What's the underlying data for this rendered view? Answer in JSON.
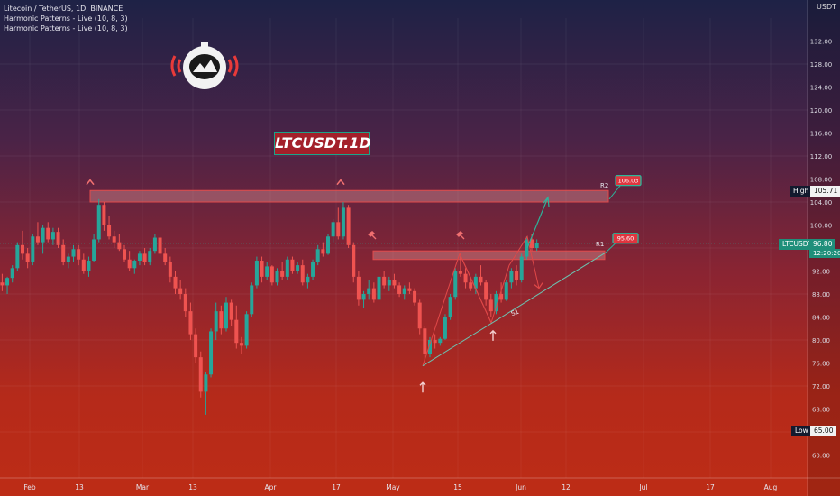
{
  "legend": {
    "line1": "Litecoin / TetherUS, 1D, BINANCE",
    "line2": "Harmonic Patterns - Live (10, 8, 3)",
    "line3": "Harmonic Patterns - Live (10, 8, 3)"
  },
  "currency": "USDT",
  "symbol_title": "LTCUSDT.1D",
  "price_tags": {
    "high_label": "High",
    "high_value": "105.71",
    "low_label": "Low",
    "low_value": "65.00",
    "symbol": "LTCUSDT",
    "last_price": "96.80",
    "countdown": "12:20:20"
  },
  "annotations": {
    "r2": "R2",
    "r1": "R1",
    "s1": "S1",
    "r2_callout": "106.03",
    "r1_callout": "95.60"
  },
  "colors": {
    "up": "#26a69a",
    "down": "#ef5350",
    "zone_fill": "#e8a0a0",
    "callout_fill": "#e0353f",
    "callout_border": "#2bb89a"
  },
  "icons": [
    "astronaut-logo-icon",
    "resistance-caret-icon",
    "support-arrow-icon",
    "hammer-pattern-icon"
  ],
  "chart_data": {
    "type": "candlestick",
    "title": "LTCUSDT.1D",
    "ylim": [
      56,
      136
    ],
    "y_ticks": [
      60,
      64,
      68,
      72,
      76,
      80,
      84,
      88,
      92,
      96,
      100,
      104,
      108,
      112,
      116,
      120,
      124,
      128,
      132
    ],
    "x_labels": [
      "Feb",
      "13",
      "Mar",
      "13",
      "Apr",
      "17",
      "May",
      "15",
      "Jun",
      "12",
      "Jul",
      "17",
      "Aug"
    ],
    "candles_ohlc": [
      [
        90.0,
        91.5,
        88.5,
        89.5
      ],
      [
        89.5,
        91.0,
        88.0,
        90.8
      ],
      [
        90.8,
        93.0,
        90.0,
        92.5
      ],
      [
        92.5,
        97.0,
        92.0,
        96.5
      ],
      [
        96.5,
        99.0,
        94.0,
        95.0
      ],
      [
        95.0,
        96.0,
        92.5,
        93.5
      ],
      [
        93.5,
        98.5,
        93.0,
        98.0
      ],
      [
        98.0,
        100.5,
        96.5,
        97.0
      ],
      [
        97.0,
        100.0,
        95.0,
        99.5
      ],
      [
        99.5,
        100.5,
        97.0,
        97.5
      ],
      [
        97.5,
        99.5,
        96.5,
        98.8
      ],
      [
        98.8,
        99.5,
        96.0,
        96.5
      ],
      [
        96.5,
        97.5,
        93.0,
        93.5
      ],
      [
        93.5,
        95.0,
        92.5,
        94.5
      ],
      [
        94.5,
        96.5,
        93.5,
        95.8
      ],
      [
        95.8,
        96.5,
        93.0,
        94.0
      ],
      [
        94.0,
        95.0,
        91.5,
        92.0
      ],
      [
        92.0,
        94.5,
        91.0,
        93.8
      ],
      [
        93.8,
        98.5,
        93.5,
        97.5
      ],
      [
        97.5,
        104.5,
        97.0,
        103.5
      ],
      [
        103.5,
        104.0,
        99.0,
        100.0
      ],
      [
        100.0,
        101.5,
        97.5,
        98.0
      ],
      [
        98.0,
        99.0,
        96.0,
        97.0
      ],
      [
        97.0,
        98.5,
        95.5,
        95.8
      ],
      [
        95.8,
        96.5,
        93.5,
        94.0
      ],
      [
        94.0,
        95.5,
        92.0,
        92.5
      ],
      [
        92.5,
        94.0,
        91.5,
        93.8
      ],
      [
        93.8,
        95.5,
        93.0,
        95.0
      ],
      [
        95.0,
        96.0,
        93.0,
        93.5
      ],
      [
        93.5,
        96.0,
        93.0,
        95.5
      ],
      [
        95.5,
        98.5,
        95.0,
        97.8
      ],
      [
        97.8,
        98.0,
        94.5,
        95.0
      ],
      [
        95.0,
        96.0,
        93.0,
        93.5
      ],
      [
        93.5,
        94.5,
        90.0,
        91.0
      ],
      [
        91.0,
        92.0,
        88.0,
        89.0
      ],
      [
        89.0,
        90.5,
        87.0,
        88.0
      ],
      [
        88.0,
        89.0,
        84.0,
        85.0
      ],
      [
        85.0,
        86.5,
        80.0,
        81.0
      ],
      [
        81.0,
        82.0,
        76.0,
        77.0
      ],
      [
        77.0,
        78.0,
        70.0,
        71.0
      ],
      [
        71.0,
        74.5,
        67.0,
        74.0
      ],
      [
        74.0,
        82.0,
        73.5,
        81.5
      ],
      [
        81.5,
        86.5,
        80.0,
        85.0
      ],
      [
        85.0,
        86.0,
        81.0,
        82.0
      ],
      [
        82.0,
        87.5,
        81.5,
        86.5
      ],
      [
        86.5,
        87.0,
        82.5,
        83.5
      ],
      [
        83.5,
        86.0,
        78.5,
        79.5
      ],
      [
        79.5,
        80.5,
        77.5,
        79.0
      ],
      [
        79.0,
        85.0,
        78.5,
        84.5
      ],
      [
        84.5,
        90.0,
        84.0,
        89.5
      ],
      [
        89.5,
        94.5,
        89.0,
        93.8
      ],
      [
        93.8,
        94.5,
        90.0,
        91.0
      ],
      [
        91.0,
        93.5,
        90.5,
        92.8
      ],
      [
        92.8,
        93.0,
        89.5,
        90.0
      ],
      [
        90.0,
        92.5,
        89.5,
        92.0
      ],
      [
        92.0,
        93.5,
        90.5,
        91.0
      ],
      [
        91.0,
        94.5,
        90.5,
        94.0
      ],
      [
        94.0,
        94.5,
        91.5,
        92.0
      ],
      [
        92.0,
        93.5,
        91.5,
        93.0
      ],
      [
        93.0,
        94.0,
        89.5,
        90.0
      ],
      [
        90.0,
        91.5,
        89.0,
        91.0
      ],
      [
        91.0,
        94.0,
        90.5,
        93.5
      ],
      [
        93.5,
        96.5,
        93.0,
        95.8
      ],
      [
        95.8,
        97.0,
        94.5,
        95.0
      ],
      [
        95.0,
        98.5,
        94.8,
        98.0
      ],
      [
        98.0,
        101.0,
        97.0,
        100.5
      ],
      [
        100.5,
        103.0,
        97.5,
        98.0
      ],
      [
        98.0,
        104.0,
        97.5,
        103.0
      ],
      [
        103.0,
        103.5,
        96.0,
        96.5
      ],
      [
        96.5,
        97.0,
        90.0,
        91.0
      ],
      [
        91.0,
        92.0,
        86.0,
        87.0
      ],
      [
        87.0,
        88.5,
        85.5,
        88.0
      ],
      [
        88.0,
        90.5,
        87.0,
        89.0
      ],
      [
        89.0,
        90.0,
        86.5,
        87.0
      ],
      [
        87.0,
        91.5,
        86.5,
        91.0
      ],
      [
        91.0,
        92.0,
        89.0,
        89.5
      ],
      [
        89.5,
        91.0,
        88.5,
        90.5
      ],
      [
        90.5,
        91.5,
        89.0,
        89.5
      ],
      [
        89.5,
        90.0,
        87.5,
        88.0
      ],
      [
        88.0,
        89.5,
        87.0,
        89.0
      ],
      [
        89.0,
        90.0,
        88.0,
        88.5
      ],
      [
        88.5,
        89.0,
        86.0,
        86.5
      ],
      [
        86.5,
        87.0,
        81.0,
        82.0
      ],
      [
        82.0,
        82.5,
        76.0,
        77.5
      ],
      [
        77.5,
        80.5,
        77.0,
        80.0
      ],
      [
        80.0,
        81.0,
        78.5,
        79.5
      ],
      [
        79.5,
        80.5,
        79.0,
        80.2
      ],
      [
        80.2,
        84.5,
        80.0,
        84.0
      ],
      [
        84.0,
        88.0,
        83.5,
        87.5
      ],
      [
        87.5,
        92.5,
        87.0,
        92.0
      ],
      [
        92.0,
        95.0,
        91.0,
        91.5
      ],
      [
        91.5,
        92.5,
        89.0,
        90.0
      ],
      [
        90.0,
        91.0,
        88.5,
        89.0
      ],
      [
        89.0,
        91.5,
        88.0,
        91.0
      ],
      [
        91.0,
        93.0,
        89.5,
        90.0
      ],
      [
        90.0,
        90.5,
        86.0,
        87.0
      ],
      [
        87.0,
        88.0,
        84.0,
        85.0
      ],
      [
        85.0,
        88.5,
        84.5,
        88.0
      ],
      [
        88.0,
        90.0,
        86.5,
        87.0
      ],
      [
        87.0,
        90.5,
        86.8,
        90.0
      ],
      [
        90.0,
        92.5,
        89.0,
        92.0
      ],
      [
        92.0,
        93.0,
        89.5,
        90.5
      ],
      [
        90.5,
        95.0,
        90.0,
        94.5
      ],
      [
        94.5,
        98.0,
        94.0,
        97.5
      ],
      [
        97.5,
        98.5,
        95.5,
        96.0
      ],
      [
        96.0,
        97.5,
        95.5,
        96.8
      ]
    ],
    "zones": [
      {
        "name": "upper resistance zone",
        "from": 104.0,
        "to": 106.0
      },
      {
        "name": "lower resistance zone",
        "from": 94.0,
        "to": 95.5
      }
    ],
    "levels": {
      "R2": 106.03,
      "R1": 95.6,
      "high": 105.71,
      "low": 65.0,
      "last": 96.8
    }
  }
}
